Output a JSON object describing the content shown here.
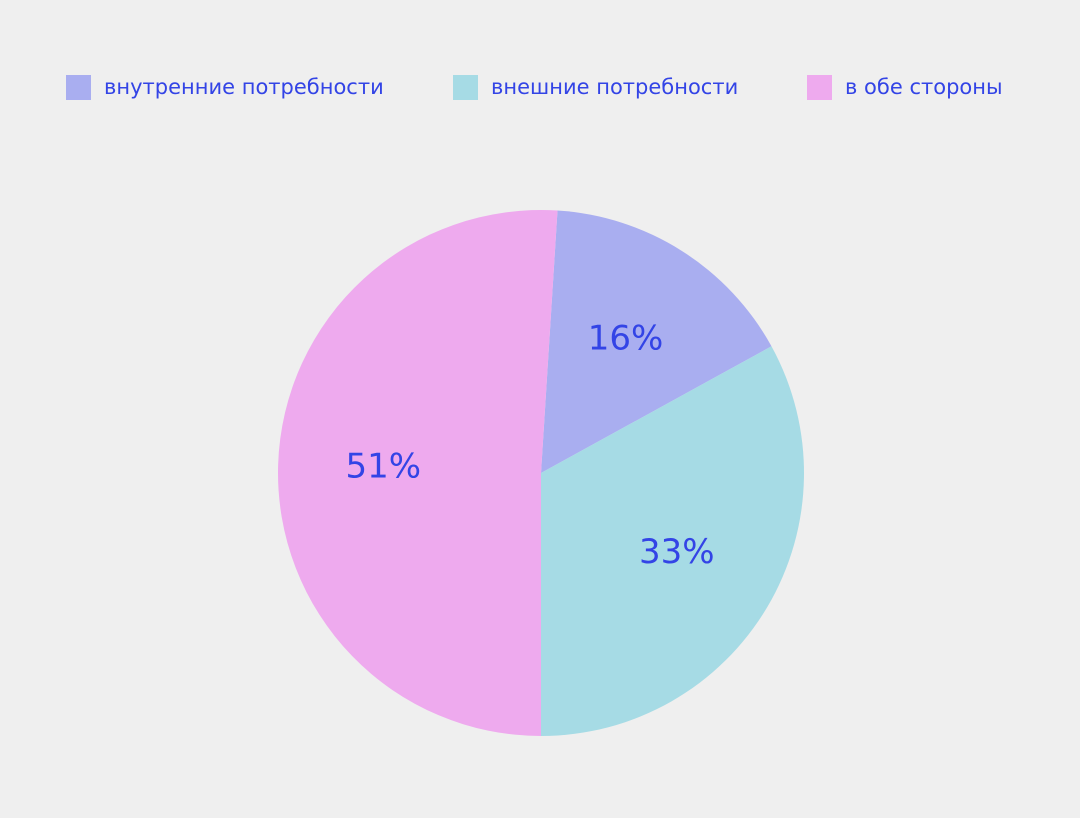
{
  "chart_data": {
    "type": "pie",
    "categories": [
      "внутренние потребности",
      "внешние потребности",
      "в обе стороны"
    ],
    "values": [
      16,
      33,
      51
    ],
    "value_labels": [
      "16%",
      "33%",
      "51%"
    ],
    "colors": [
      "#a9aef0",
      "#a6dbe5",
      "#eeaaee"
    ],
    "legend": "top"
  }
}
